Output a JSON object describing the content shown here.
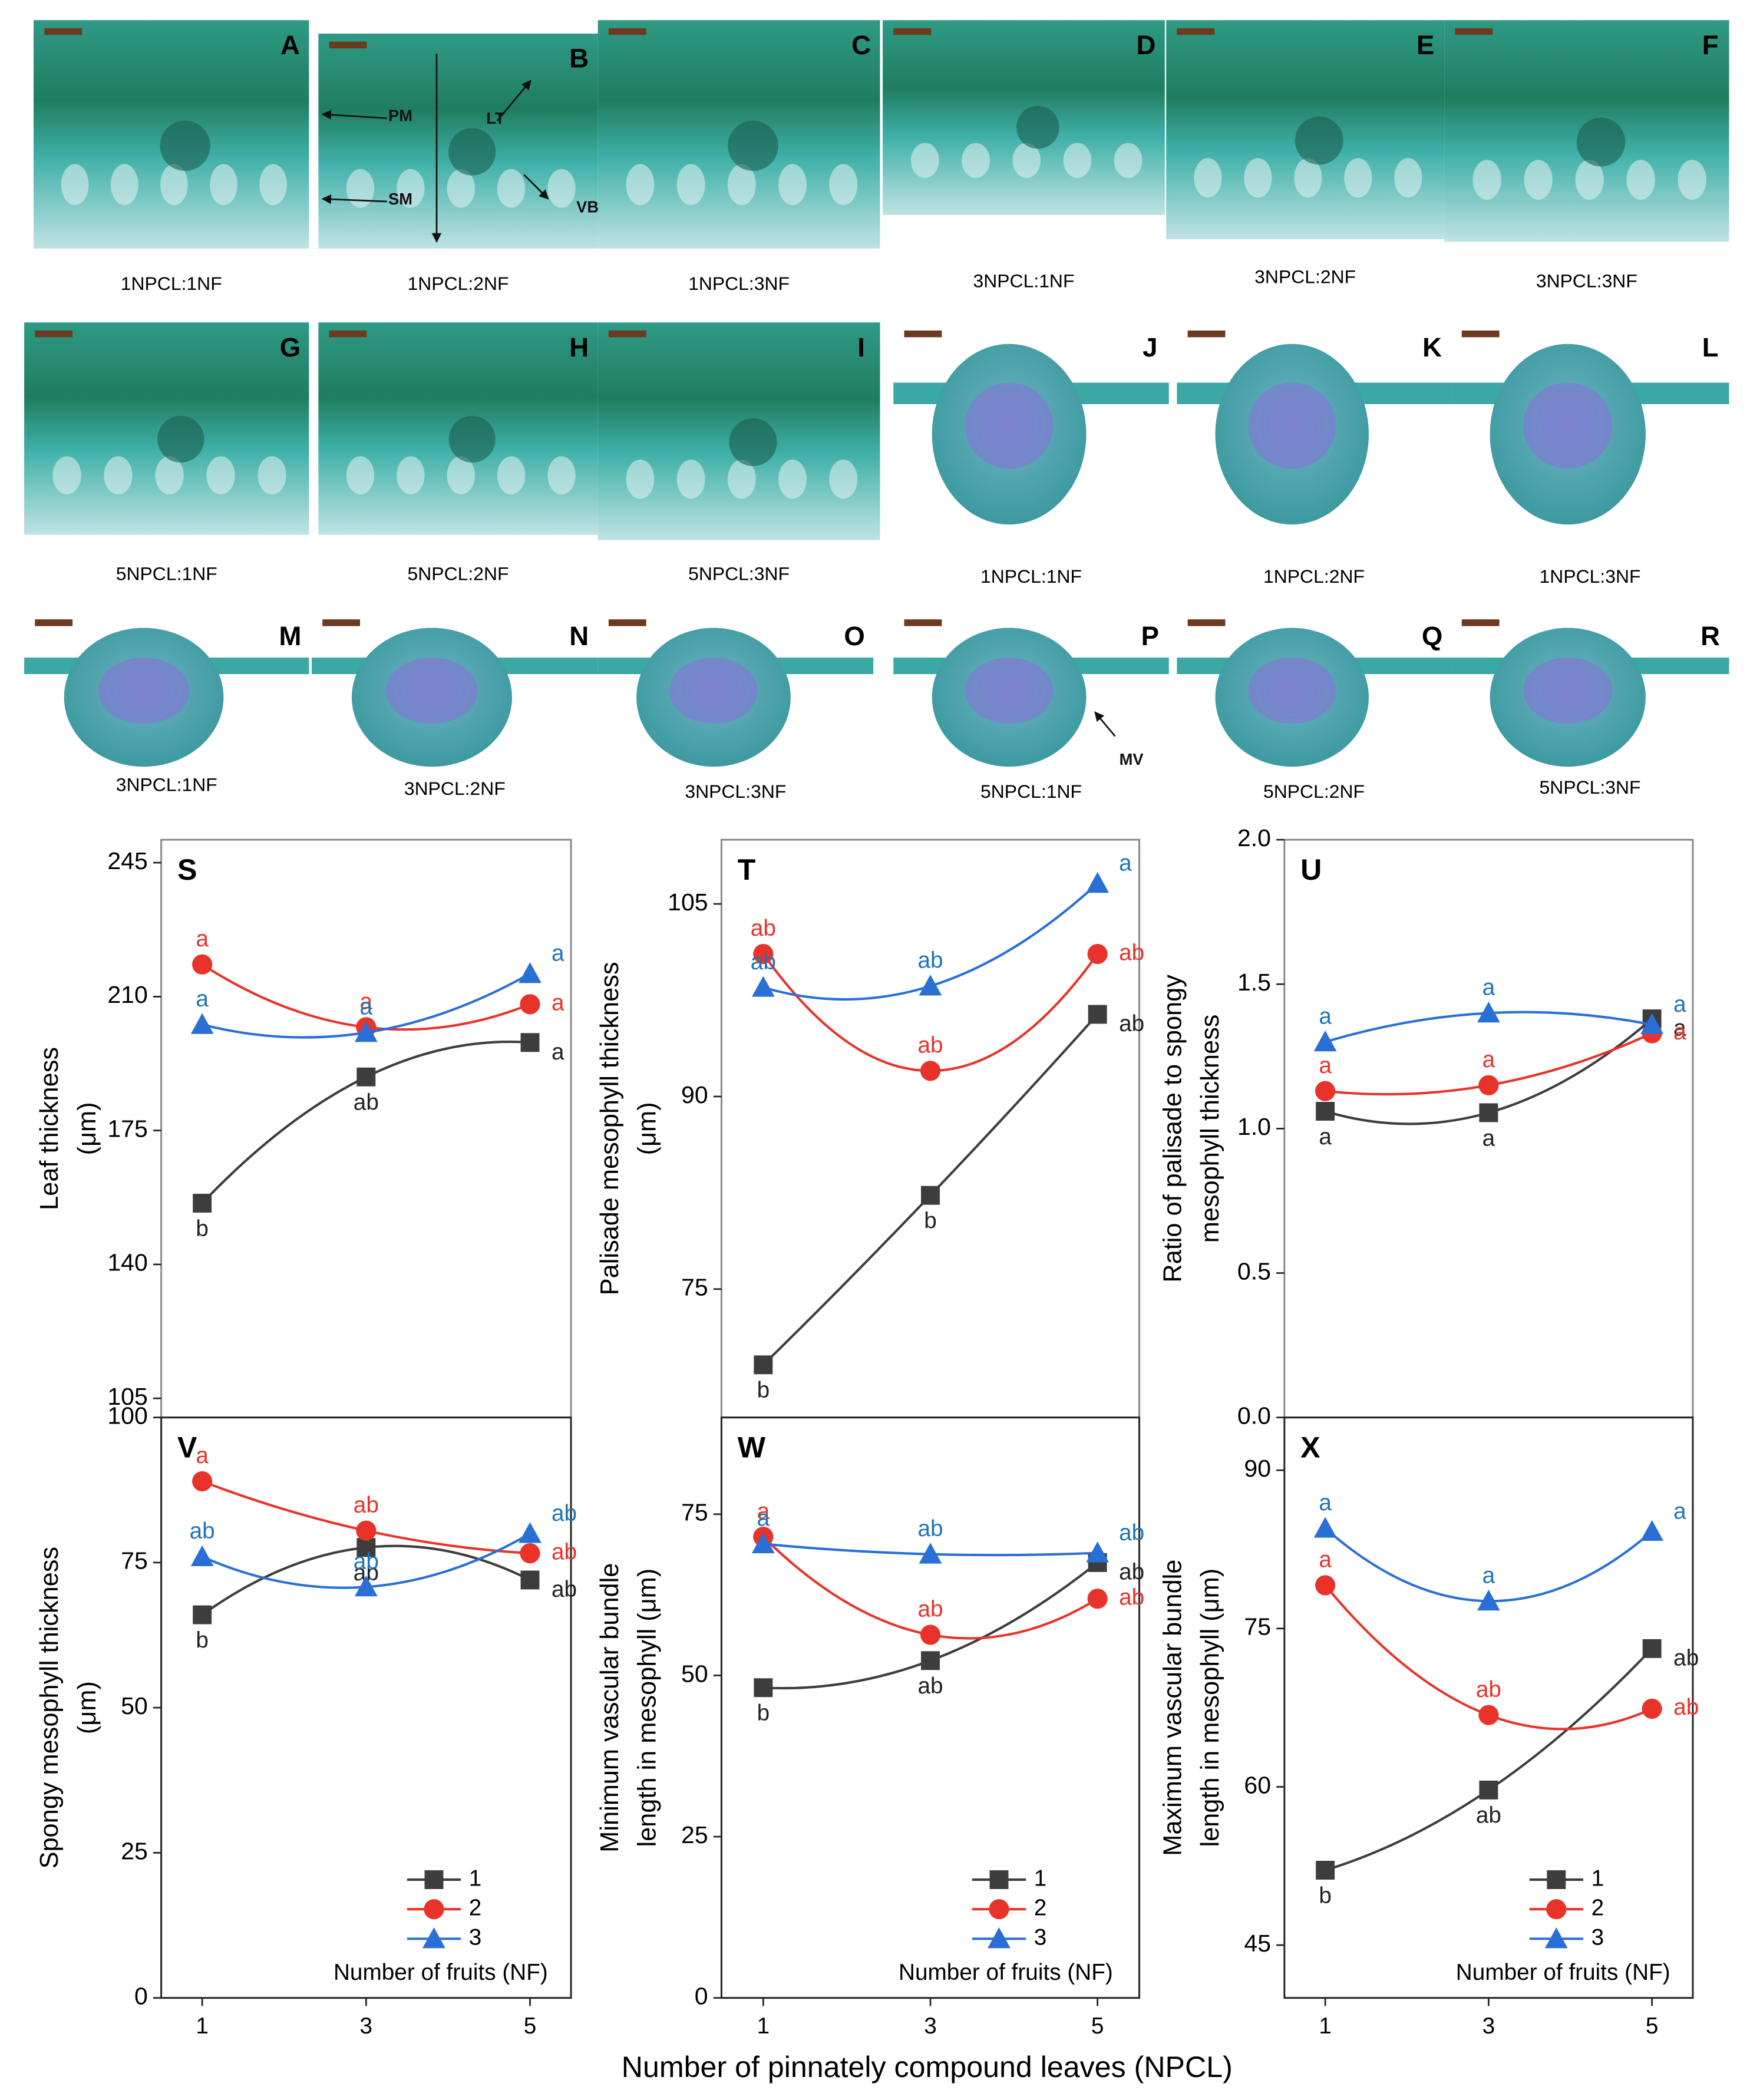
{
  "panels": [
    {
      "letter": "A",
      "caption": "1NPCL:1NF"
    },
    {
      "letter": "B",
      "caption": "1NPCL:2NF",
      "labels": [
        "PM",
        "SM",
        "LT",
        "VB"
      ]
    },
    {
      "letter": "C",
      "caption": "1NPCL:3NF"
    },
    {
      "letter": "D",
      "caption": "3NPCL:1NF"
    },
    {
      "letter": "E",
      "caption": "3NPCL:2NF"
    },
    {
      "letter": "F",
      "caption": "3NPCL:3NF"
    },
    {
      "letter": "G",
      "caption": "5NPCL:1NF"
    },
    {
      "letter": "H",
      "caption": "5NPCL:2NF"
    },
    {
      "letter": "I",
      "caption": "5NPCL:3NF"
    },
    {
      "letter": "J",
      "caption": "1NPCL:1NF"
    },
    {
      "letter": "K",
      "caption": "1NPCL:2NF"
    },
    {
      "letter": "L",
      "caption": "1NPCL:3NF"
    },
    {
      "letter": "M",
      "caption": "3NPCL:1NF"
    },
    {
      "letter": "N",
      "caption": "3NPCL:2NF"
    },
    {
      "letter": "O",
      "caption": "3NPCL:3NF"
    },
    {
      "letter": "P",
      "caption": "5NPCL:1NF",
      "labels": [
        "MV"
      ]
    },
    {
      "letter": "Q",
      "caption": "5NPCL:2NF"
    },
    {
      "letter": "R",
      "caption": "5NPCL:3NF"
    }
  ],
  "xlabel": "Number of pinnately compound leaves (NPCL)",
  "chart_data": [
    {
      "type": "line",
      "panel": "S",
      "ylabel": [
        "Leaf thickness",
        "(μm)"
      ],
      "x": [
        1,
        3,
        5
      ],
      "xlim": [
        0.5,
        5.5
      ],
      "ylim": [
        100,
        251
      ],
      "yticks": [
        105,
        140,
        175,
        210,
        245
      ],
      "series": [
        {
          "name": "1",
          "color": "#3d3d3d",
          "marker": "square",
          "values": [
            156,
            189,
            198
          ],
          "letters": [
            "b",
            "ab",
            "a"
          ]
        },
        {
          "name": "2",
          "color": "#e8332a",
          "marker": "circle",
          "values": [
            218.4,
            202,
            208
          ],
          "letters": [
            "a",
            "a",
            "a"
          ]
        },
        {
          "name": "3",
          "color": "#2a6fd6",
          "marker": "triangle",
          "values": [
            202.7,
            200.6,
            216
          ],
          "letters": [
            "a",
            "a",
            "a"
          ]
        }
      ]
    },
    {
      "type": "line",
      "panel": "T",
      "ylabel": [
        "Palisade mesophyll thickness",
        "(μm)"
      ],
      "x": [
        1,
        3,
        5
      ],
      "xlim": [
        0.5,
        5.5
      ],
      "ylim": [
        65,
        110
      ],
      "yticks": [
        75,
        90,
        105
      ],
      "series": [
        {
          "name": "1",
          "color": "#3d3d3d",
          "marker": "square",
          "values": [
            69.1,
            82.3,
            96.4
          ],
          "letters": [
            "b",
            "b",
            "ab"
          ]
        },
        {
          "name": "2",
          "color": "#e8332a",
          "marker": "circle",
          "values": [
            101.1,
            92,
            101.1
          ],
          "letters": [
            "ab",
            "ab",
            "ab"
          ]
        },
        {
          "name": "3",
          "color": "#2a6fd6",
          "marker": "triangle",
          "values": [
            98.5,
            98.6,
            106.6
          ],
          "letters": [
            "ab",
            "ab",
            "a"
          ]
        }
      ]
    },
    {
      "type": "line",
      "panel": "U",
      "ylabel": [
        "Ratio of palisade to spongy",
        "mesophyll thickness"
      ],
      "x": [
        1,
        3,
        5
      ],
      "xlim": [
        0.5,
        5.5
      ],
      "ylim": [
        0,
        2
      ],
      "yticks": [
        {
          "value": 0,
          "label": "0.0"
        },
        0.5,
        {
          "value": 1,
          "label": "1.0"
        },
        1.5,
        {
          "value": 2,
          "label": "2.0"
        }
      ],
      "series": [
        {
          "name": "1",
          "color": "#3d3d3d",
          "marker": "square",
          "values": [
            1.06,
            1.055,
            1.38
          ],
          "letters": [
            "a",
            "a",
            "a"
          ]
        },
        {
          "name": "2",
          "color": "#e8332a",
          "marker": "circle",
          "values": [
            1.13,
            1.15,
            1.33
          ],
          "letters": [
            "a",
            "a",
            "a"
          ]
        },
        {
          "name": "3",
          "color": "#2a6fd6",
          "marker": "triangle",
          "values": [
            1.3,
            1.4,
            1.36
          ],
          "letters": [
            "a",
            "a",
            "a"
          ]
        }
      ]
    },
    {
      "type": "line",
      "panel": "V",
      "ylabel": [
        "Spongy mesophyll thickness",
        "(μm)"
      ],
      "x": [
        1,
        3,
        5
      ],
      "xlim": [
        0.5,
        5.5
      ],
      "xticks": [
        1,
        3,
        5
      ],
      "ylim": [
        0,
        100
      ],
      "yticks": [
        0,
        25,
        50,
        75,
        100
      ],
      "legend_title": "Number of fruits (NF)",
      "series": [
        {
          "name": "1",
          "color": "#3d3d3d",
          "marker": "square",
          "values": [
            66,
            77.6,
            72
          ],
          "letters": [
            "b",
            "ab",
            "ab"
          ]
        },
        {
          "name": "2",
          "color": "#e8332a",
          "marker": "circle",
          "values": [
            89,
            80.5,
            76.6
          ],
          "letters": [
            "a",
            "ab",
            "ab"
          ]
        },
        {
          "name": "3",
          "color": "#2a6fd6",
          "marker": "triangle",
          "values": [
            76,
            70.8,
            80
          ],
          "letters": [
            "ab",
            "ab",
            "ab"
          ]
        }
      ]
    },
    {
      "type": "line",
      "panel": "W",
      "ylabel": [
        "Minimum vascular bundle",
        "length in mesophyll (μm)"
      ],
      "x": [
        1,
        3,
        5
      ],
      "xlim": [
        0.5,
        5.5
      ],
      "xticks": [
        1,
        3,
        5
      ],
      "ylim": [
        0,
        90
      ],
      "yticks": [
        0,
        25,
        50,
        75
      ],
      "legend_title": "Number of fruits (NF)",
      "series": [
        {
          "name": "1",
          "color": "#3d3d3d",
          "marker": "square",
          "values": [
            48.1,
            52.3,
            67.5
          ],
          "letters": [
            "b",
            "ab",
            "ab"
          ]
        },
        {
          "name": "2",
          "color": "#e8332a",
          "marker": "circle",
          "values": [
            71.5,
            56.3,
            61.9
          ],
          "letters": [
            "a",
            "ab",
            "ab"
          ]
        },
        {
          "name": "3",
          "color": "#2a6fd6",
          "marker": "triangle",
          "values": [
            70.4,
            68.8,
            69
          ],
          "letters": [
            "a",
            "ab",
            "ab"
          ]
        }
      ]
    },
    {
      "type": "line",
      "panel": "X",
      "ylabel": [
        "Maximum vascular bundle",
        "length in mesophyll (μm)"
      ],
      "x": [
        1,
        3,
        5
      ],
      "xlim": [
        0.5,
        5.5
      ],
      "xticks": [
        1,
        3,
        5
      ],
      "ylim": [
        40,
        95
      ],
      "yticks": [
        45,
        60,
        75,
        90
      ],
      "legend_title": "Number of fruits (NF)",
      "series": [
        {
          "name": "1",
          "color": "#3d3d3d",
          "marker": "square",
          "values": [
            52.1,
            59.7,
            73.1
          ],
          "letters": [
            "b",
            "ab",
            "ab"
          ]
        },
        {
          "name": "2",
          "color": "#e8332a",
          "marker": "circle",
          "values": [
            79.1,
            66.8,
            67.4
          ],
          "letters": [
            "a",
            "ab",
            "ab"
          ]
        },
        {
          "name": "3",
          "color": "#2a6fd6",
          "marker": "triangle",
          "values": [
            84.5,
            77.6,
            84.2
          ],
          "letters": [
            "a",
            "a",
            "a"
          ]
        }
      ]
    }
  ]
}
